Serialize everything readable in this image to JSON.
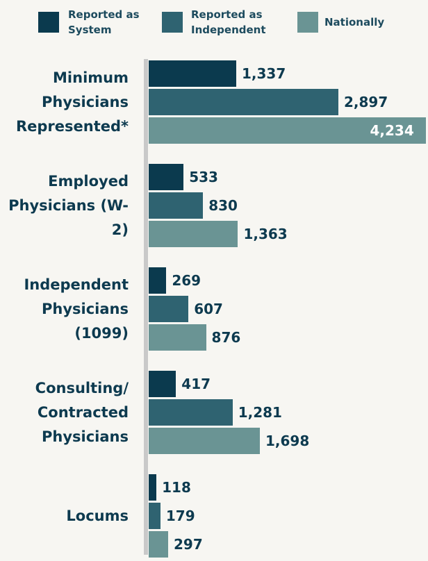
{
  "chart_data": {
    "type": "bar",
    "orientation": "horizontal",
    "categories": [
      "Minimum Physicians Represented*",
      "Employed Physicians (W-2)",
      "Independent Physicians (1099)",
      "Consulting/ Contracted Physicians",
      "Locums"
    ],
    "series": [
      {
        "name": "Reported as System",
        "color": "#0b3a4e",
        "values": [
          1337,
          533,
          269,
          417,
          118
        ],
        "value_labels": [
          "1,337",
          "533",
          "269",
          "417",
          "118"
        ]
      },
      {
        "name": "Reported as Independent",
        "color": "#2f6371",
        "values": [
          2897,
          830,
          607,
          1281,
          179
        ],
        "value_labels": [
          "2,897",
          "830",
          "607",
          "1,281",
          "179"
        ]
      },
      {
        "name": "Nationally",
        "color": "#6a9494",
        "values": [
          4234,
          1363,
          876,
          1698,
          297
        ],
        "value_labels": [
          "4,234",
          "1,363",
          "876",
          "1,698",
          "297"
        ]
      }
    ]
  }
}
